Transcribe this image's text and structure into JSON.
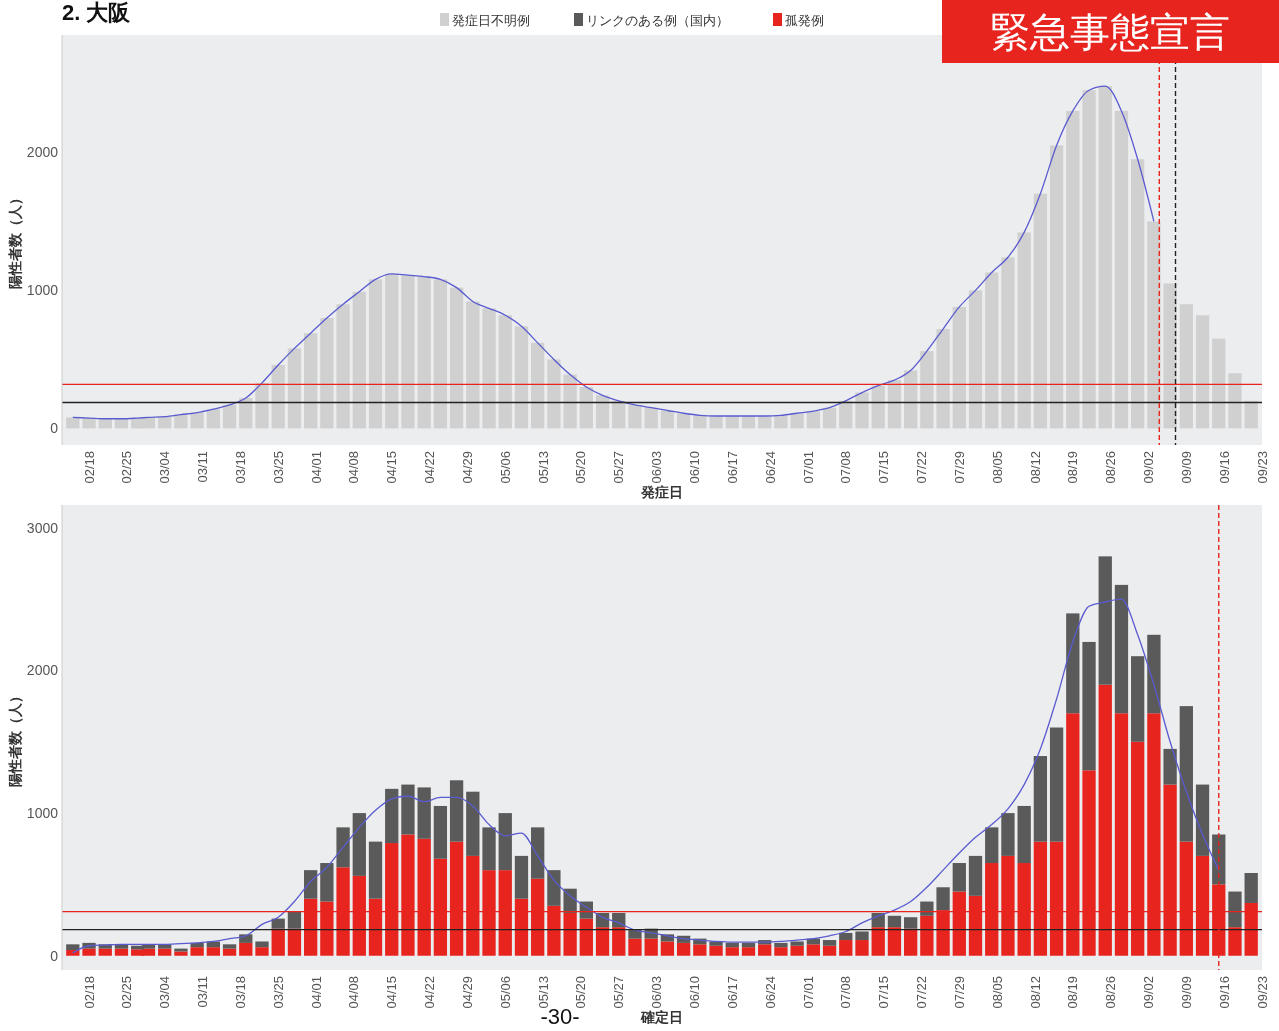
{
  "chart_data": [
    {
      "type": "bar",
      "title": "2. 大阪",
      "xlabel": "発症日",
      "ylabel": "陽性者数（人）",
      "annotations": [
        "緊急事態宣言"
      ],
      "legend": "top",
      "x": [
        "--02-15",
        "--02-18",
        "--02-21",
        "--02-24",
        "--02-27",
        "--03-01",
        "--03-04",
        "--03-07",
        "--03-10",
        "--03-13",
        "--03-16",
        "--03-19",
        "--03-22",
        "--03-25",
        "--03-28",
        "--03-31",
        "--04-03",
        "--04-06",
        "--04-09",
        "--04-12",
        "--04-15",
        "--04-18",
        "--04-21",
        "--04-24",
        "--04-27",
        "--04-30",
        "--05-03",
        "--05-06",
        "--05-09",
        "--05-12",
        "--05-15",
        "--05-18",
        "--05-21",
        "--05-24",
        "--05-27",
        "--05-30",
        "--06-02",
        "--06-05",
        "--06-08",
        "--06-11",
        "--06-14",
        "--06-17",
        "--06-20",
        "--06-23",
        "--06-26",
        "--06-29",
        "--07-02",
        "--07-05",
        "--07-08",
        "--07-11",
        "--07-14",
        "--07-17",
        "--07-20",
        "--07-23",
        "--07-26",
        "--07-29",
        "--08-01",
        "--08-04",
        "--08-07",
        "--08-10",
        "--08-13",
        "--08-16",
        "--08-19",
        "--08-22",
        "--08-25",
        "--08-28",
        "--08-31",
        "--09-03",
        "--09-06",
        "--09-09",
        "--09-12",
        "--09-15",
        "--09-18",
        "--09-21"
      ],
      "series": [
        {
          "name": "発症日不明例",
          "color": "#d0d0d0",
          "values": [
            80,
            75,
            70,
            70,
            75,
            80,
            85,
            100,
            115,
            140,
            170,
            220,
            330,
            460,
            580,
            690,
            800,
            900,
            990,
            1080,
            1120,
            1110,
            1100,
            1080,
            1020,
            920,
            870,
            820,
            740,
            620,
            500,
            390,
            300,
            240,
            200,
            170,
            150,
            130,
            110,
            95,
            90,
            90,
            90,
            90,
            95,
            110,
            125,
            150,
            200,
            260,
            310,
            350,
            420,
            560,
            720,
            880,
            1000,
            1130,
            1240,
            1420,
            1700,
            2050,
            2300,
            2450,
            2480,
            2300,
            1950,
            1500,
            1050,
            900,
            820,
            650,
            400,
            200
          ]
        },
        {
          "type": "line",
          "color": "#5b5bd0",
          "values": [
            80,
            75,
            70,
            70,
            75,
            80,
            85,
            100,
            115,
            140,
            170,
            220,
            330,
            460,
            580,
            690,
            800,
            900,
            990,
            1080,
            1120,
            1110,
            1100,
            1080,
            1020,
            920,
            870,
            820,
            740,
            620,
            500,
            390,
            300,
            240,
            200,
            170,
            150,
            130,
            110,
            95,
            90,
            90,
            90,
            90,
            95,
            110,
            125,
            150,
            200,
            260,
            310,
            350,
            420,
            560,
            720,
            880,
            1000,
            1130,
            1240,
            1420,
            1700,
            2050,
            2300,
            2450,
            2480,
            2300,
            1950,
            1500,
            null,
            null,
            null,
            null,
            null,
            null
          ]
        }
      ],
      "xlim": [
        "--02-13",
        "--09-23"
      ],
      "ylim": [
        -120,
        2850
      ],
      "yticks": [
        0,
        1000,
        2000
      ],
      "xticks": [
        {
          "value": "--02-18",
          "label": "02/18"
        },
        {
          "value": "--02-25",
          "label": "02/25"
        },
        {
          "value": "--03-04",
          "label": "03/04"
        },
        {
          "value": "--03-11",
          "label": "03/11"
        },
        {
          "value": "--03-18",
          "label": "03/18"
        },
        {
          "value": "--03-25",
          "label": "03/25"
        },
        {
          "value": "--04-01",
          "label": "04/01"
        },
        {
          "value": "--04-08",
          "label": "04/08"
        },
        {
          "value": "--04-15",
          "label": "04/15"
        },
        {
          "value": "--04-22",
          "label": "04/22"
        },
        {
          "value": "--04-29",
          "label": "04/29"
        },
        {
          "value": "--05-06",
          "label": "05/06"
        },
        {
          "value": "--05-13",
          "label": "05/13"
        },
        {
          "value": "--05-20",
          "label": "05/20"
        },
        {
          "value": "--05-27",
          "label": "05/27"
        },
        {
          "value": "--06-03",
          "label": "06/03"
        },
        {
          "value": "--06-10",
          "label": "06/10"
        },
        {
          "value": "--06-17",
          "label": "06/17"
        },
        {
          "value": "--06-24",
          "label": "06/24"
        },
        {
          "value": "--07-01",
          "label": "07/01"
        },
        {
          "value": "--07-08",
          "label": "07/08"
        },
        {
          "value": "--07-15",
          "label": "07/15"
        },
        {
          "value": "--07-22",
          "label": "07/22"
        },
        {
          "value": "--07-29",
          "label": "07/29"
        },
        {
          "value": "--08-05",
          "label": "08/05"
        },
        {
          "value": "--08-12",
          "label": "08/12"
        },
        {
          "value": "--08-19",
          "label": "08/19"
        },
        {
          "value": "--08-26",
          "label": "08/26"
        },
        {
          "value": "--09-02",
          "label": "09/02"
        },
        {
          "value": "--09-09",
          "label": "09/09"
        },
        {
          "value": "--09-16",
          "label": "09/16"
        },
        {
          "value": "--09-23",
          "label": "09/23"
        }
      ],
      "ref_lines": [
        {
          "axis": "y",
          "value": 319,
          "color": "#e8241f",
          "line_style": "solid"
        },
        {
          "axis": "y",
          "value": 188,
          "color": "#222222",
          "line_style": "solid"
        },
        {
          "axis": "x",
          "value": "--09-04",
          "color": "#e8241f",
          "line_style": "dashed"
        },
        {
          "axis": "x",
          "value": "--09-07",
          "color": "#222222",
          "line_style": "dashed"
        }
      ]
    },
    {
      "type": "bar",
      "stacked": true,
      "xlabel": "確定日",
      "ylabel": "陽性者数（人）",
      "annotations": [
        "-30-"
      ],
      "legend": "top",
      "x": [
        "--02-15",
        "--02-18",
        "--02-21",
        "--02-24",
        "--02-27",
        "--03-01",
        "--03-04",
        "--03-07",
        "--03-10",
        "--03-13",
        "--03-16",
        "--03-19",
        "--03-22",
        "--03-25",
        "--03-28",
        "--03-31",
        "--04-03",
        "--04-06",
        "--04-09",
        "--04-12",
        "--04-15",
        "--04-18",
        "--04-21",
        "--04-24",
        "--04-27",
        "--04-30",
        "--05-03",
        "--05-06",
        "--05-09",
        "--05-12",
        "--05-15",
        "--05-18",
        "--05-21",
        "--05-24",
        "--05-27",
        "--05-30",
        "--06-02",
        "--06-05",
        "--06-08",
        "--06-11",
        "--06-14",
        "--06-17",
        "--06-20",
        "--06-23",
        "--06-26",
        "--06-29",
        "--07-02",
        "--07-05",
        "--07-08",
        "--07-11",
        "--07-14",
        "--07-17",
        "--07-20",
        "--07-23",
        "--07-26",
        "--07-29",
        "--08-01",
        "--08-04",
        "--08-07",
        "--08-10",
        "--08-13",
        "--08-16",
        "--08-19",
        "--08-22",
        "--08-25",
        "--08-28",
        "--08-31",
        "--09-03",
        "--09-06",
        "--09-09",
        "--09-12",
        "--09-15",
        "--09-18",
        "--09-21"
      ],
      "series": [
        {
          "name": "孤発例",
          "color": "#e8241f",
          "values": [
            40,
            50,
            50,
            50,
            45,
            50,
            50,
            30,
            60,
            60,
            50,
            90,
            60,
            190,
            190,
            400,
            380,
            620,
            560,
            400,
            790,
            850,
            820,
            680,
            800,
            700,
            600,
            600,
            400,
            540,
            350,
            300,
            260,
            200,
            200,
            120,
            120,
            100,
            90,
            80,
            70,
            60,
            60,
            80,
            60,
            70,
            80,
            70,
            110,
            110,
            200,
            200,
            190,
            280,
            320,
            450,
            420,
            650,
            700,
            650,
            800,
            800,
            1700,
            1300,
            1900,
            1700,
            1500,
            1700,
            1200,
            800,
            700,
            500,
            200,
            370
          ]
        },
        {
          "name": "リンクのある例（国内）",
          "color": "#5a5a5a",
          "values": [
            40,
            40,
            30,
            30,
            25,
            30,
            30,
            20,
            30,
            40,
            30,
            60,
            40,
            70,
            120,
            200,
            270,
            280,
            440,
            400,
            380,
            350,
            360,
            370,
            430,
            450,
            300,
            400,
            300,
            360,
            250,
            170,
            120,
            100,
            100,
            60,
            70,
            50,
            50,
            40,
            30,
            30,
            30,
            30,
            30,
            30,
            40,
            40,
            50,
            60,
            100,
            80,
            80,
            100,
            160,
            200,
            280,
            250,
            300,
            400,
            600,
            800,
            700,
            900,
            900,
            900,
            600,
            550,
            250,
            950,
            500,
            350,
            250,
            210
          ]
        },
        {
          "type": "line",
          "color": "#5b5bd0",
          "values": [
            20,
            70,
            75,
            80,
            80,
            80,
            80,
            85,
            90,
            100,
            120,
            140,
            220,
            270,
            380,
            520,
            620,
            760,
            900,
            1020,
            1100,
            1120,
            1080,
            1110,
            1110,
            1050,
            920,
            840,
            860,
            700,
            530,
            420,
            340,
            270,
            230,
            180,
            160,
            140,
            120,
            110,
            100,
            95,
            95,
            95,
            100,
            110,
            120,
            140,
            170,
            230,
            280,
            320,
            380,
            480,
            600,
            720,
            830,
            920,
            1030,
            1200,
            1450,
            1800,
            2200,
            2450,
            2480,
            2500,
            2250,
            1900,
            1500,
            1150,
            850,
            600,
            null,
            null
          ]
        }
      ],
      "xlim": [
        "--02-13",
        "--09-23"
      ],
      "ylim": [
        -100,
        3160
      ],
      "yticks": [
        0,
        1000,
        2000,
        3000
      ],
      "xticks": [
        {
          "value": "--02-18",
          "label": "02/18"
        },
        {
          "value": "--02-25",
          "label": "02/25"
        },
        {
          "value": "--03-04",
          "label": "03/04"
        },
        {
          "value": "--03-11",
          "label": "03/11"
        },
        {
          "value": "--03-18",
          "label": "03/18"
        },
        {
          "value": "--03-25",
          "label": "03/25"
        },
        {
          "value": "--04-01",
          "label": "04/01"
        },
        {
          "value": "--04-08",
          "label": "04/08"
        },
        {
          "value": "--04-15",
          "label": "04/15"
        },
        {
          "value": "--04-22",
          "label": "04/22"
        },
        {
          "value": "--04-29",
          "label": "04/29"
        },
        {
          "value": "--05-06",
          "label": "05/06"
        },
        {
          "value": "--05-13",
          "label": "05/13"
        },
        {
          "value": "--05-20",
          "label": "05/20"
        },
        {
          "value": "--05-27",
          "label": "05/27"
        },
        {
          "value": "--06-03",
          "label": "06/03"
        },
        {
          "value": "--06-10",
          "label": "06/10"
        },
        {
          "value": "--06-17",
          "label": "06/17"
        },
        {
          "value": "--06-24",
          "label": "06/24"
        },
        {
          "value": "--07-01",
          "label": "07/01"
        },
        {
          "value": "--07-08",
          "label": "07/08"
        },
        {
          "value": "--07-15",
          "label": "07/15"
        },
        {
          "value": "--07-22",
          "label": "07/22"
        },
        {
          "value": "--07-29",
          "label": "07/29"
        },
        {
          "value": "--08-05",
          "label": "08/05"
        },
        {
          "value": "--08-12",
          "label": "08/12"
        },
        {
          "value": "--08-19",
          "label": "08/19"
        },
        {
          "value": "--08-26",
          "label": "08/26"
        },
        {
          "value": "--09-02",
          "label": "09/02"
        },
        {
          "value": "--09-09",
          "label": "09/09"
        },
        {
          "value": "--09-16",
          "label": "09/16"
        },
        {
          "value": "--09-23",
          "label": "09/23"
        }
      ],
      "ref_lines": [
        {
          "axis": "y",
          "value": 309,
          "color": "#e8241f",
          "line_style": "solid"
        },
        {
          "axis": "y",
          "value": 183,
          "color": "#222222",
          "line_style": "solid"
        },
        {
          "axis": "x",
          "value": "--09-15",
          "color": "#e8241f",
          "line_style": "dashed"
        }
      ]
    }
  ]
}
